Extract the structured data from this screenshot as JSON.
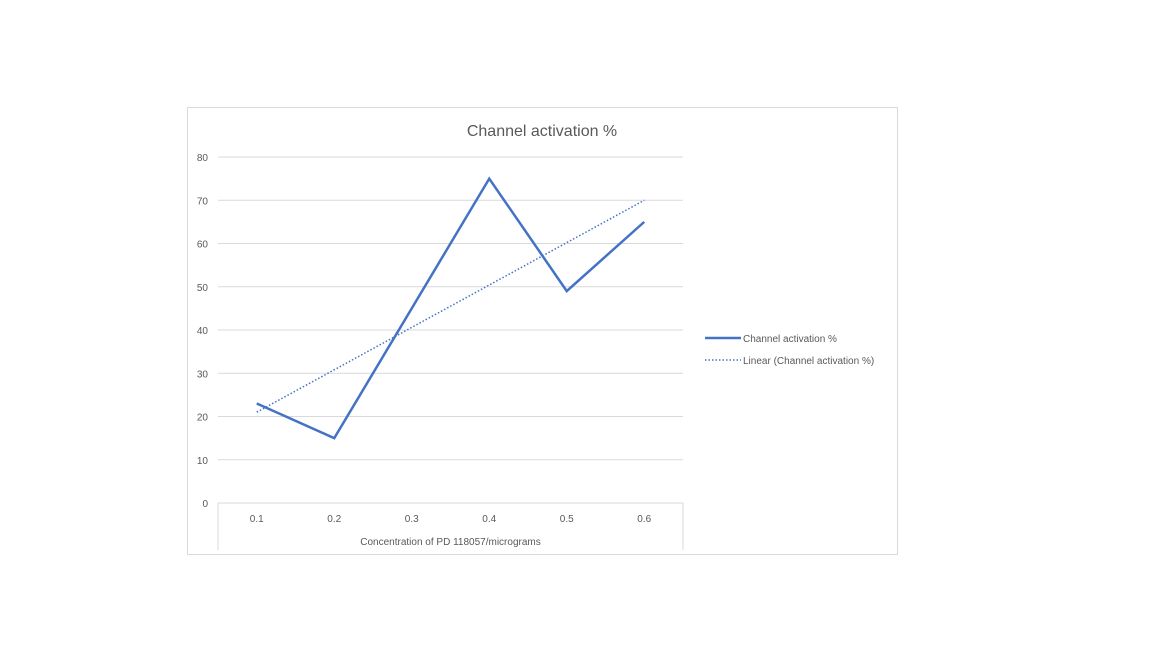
{
  "chart_data": {
    "type": "line",
    "title": "Channel activation %",
    "xlabel": "Concentration of PD 118057/micrograms",
    "ylabel": "",
    "categories": [
      "0.1",
      "0.2",
      "0.3",
      "0.4",
      "0.5",
      "0.6"
    ],
    "ylim": [
      0,
      80
    ],
    "yticks": [
      "0",
      "10",
      "20",
      "30",
      "40",
      "50",
      "60",
      "70",
      "80"
    ],
    "grid": true,
    "legend_position": "right",
    "series": [
      {
        "name": "Channel activation %",
        "values": [
          23,
          15,
          45,
          75,
          49,
          65
        ],
        "color": "#4472c4",
        "style": "solid"
      }
    ],
    "trendline": {
      "name": "Linear (Channel activation %)",
      "start": 21,
      "end": 70,
      "color": "#4472c4",
      "style": "dotted"
    }
  }
}
